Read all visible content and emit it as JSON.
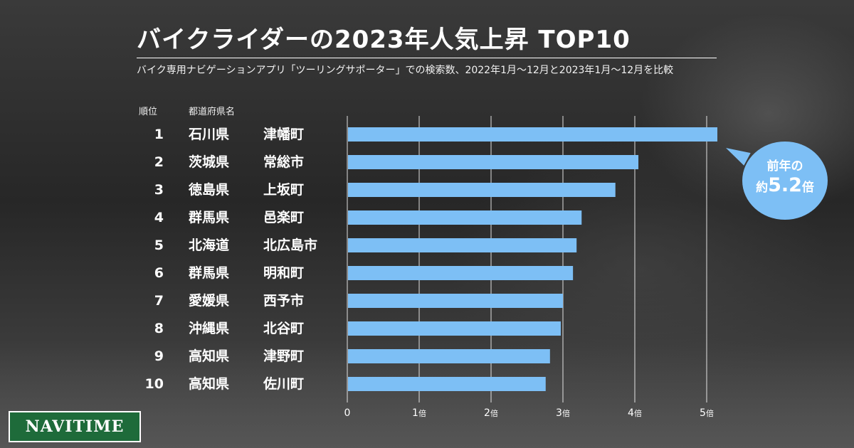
{
  "title": "バイクライダーの2023年人気上昇 TOP10",
  "subtitle": "バイク専用ナビゲーションアプリ「ツーリングサポーター」での検索数、2022年1月～12月と2023年1月～12月を比較",
  "headers": {
    "rank": "順位",
    "pref": "都道府県名"
  },
  "rows": [
    {
      "rank": "1",
      "pref": "石川県",
      "city": "津幡町"
    },
    {
      "rank": "2",
      "pref": "茨城県",
      "city": "常総市"
    },
    {
      "rank": "3",
      "pref": "徳島県",
      "city": "上坂町"
    },
    {
      "rank": "4",
      "pref": "群馬県",
      "city": "邑楽町"
    },
    {
      "rank": "5",
      "pref": "北海道",
      "city": "北広島市"
    },
    {
      "rank": "6",
      "pref": "群馬県",
      "city": "明和町"
    },
    {
      "rank": "7",
      "pref": "愛媛県",
      "city": "西予市"
    },
    {
      "rank": "8",
      "pref": "沖縄県",
      "city": "北谷町"
    },
    {
      "rank": "9",
      "pref": "高知県",
      "city": "津野町"
    },
    {
      "rank": "10",
      "pref": "高知県",
      "city": "佐川町"
    }
  ],
  "callout": {
    "line1": "前年の",
    "line2_prefix": "約",
    "line2_value": "5.2",
    "line2_suffix": "倍"
  },
  "logo": "NAVITIME",
  "colors": {
    "bar": "#7dbff5",
    "grid": "#ffffff",
    "logo_bg": "#1e6b3a"
  },
  "chart_data": {
    "type": "bar",
    "orientation": "horizontal",
    "categories": [
      "石川県 津幡町",
      "茨城県 常総市",
      "徳島県 上坂町",
      "群馬県 邑楽町",
      "北海道 北広島市",
      "群馬県 明和町",
      "愛媛県 西予市",
      "沖縄県 北谷町",
      "高知県 津野町",
      "高知県 佐川町"
    ],
    "values": [
      5.2,
      4.05,
      3.73,
      3.26,
      3.19,
      3.14,
      3.0,
      2.97,
      2.82,
      2.76
    ],
    "xlim": [
      0,
      5
    ],
    "ticks": [
      {
        "value": 0,
        "num": "0",
        "unit": ""
      },
      {
        "value": 1,
        "num": "1",
        "unit": "倍"
      },
      {
        "value": 2,
        "num": "2",
        "unit": "倍"
      },
      {
        "value": 3,
        "num": "3",
        "unit": "倍"
      },
      {
        "value": 4,
        "num": "4",
        "unit": "倍"
      },
      {
        "value": 5,
        "num": "5",
        "unit": "倍"
      }
    ],
    "grid": true
  }
}
